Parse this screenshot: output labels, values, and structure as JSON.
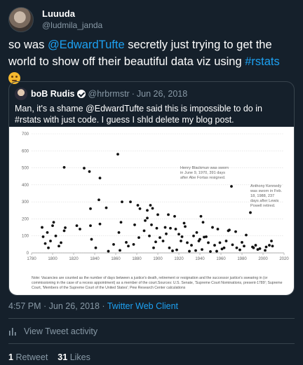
{
  "tweet": {
    "display_name": "Luuuda",
    "handle": "@ludmila_janda",
    "text_parts": [
      "so was ",
      "@EdwardTufte",
      " secretly just trying to get the world to show off their beautiful data viz using ",
      "#rstats",
      " "
    ],
    "timestamp": "4:57 PM · Jun 26, 2018",
    "via_separator": " · ",
    "client": "Twitter Web Client",
    "activity_label": "View Tweet activity",
    "retweet_count": "1",
    "retweet_label": "Retweet",
    "like_count": "31",
    "like_label": "Likes",
    "emoji_icon": "thinking-face-icon"
  },
  "quoted": {
    "display_name": "boB Rudis",
    "handle": "@hrbrmstr",
    "separator": "·",
    "date": "Jun 26, 2018",
    "text": "Man, it's a shame @EdwardTufte said this is impossible to do in #rstats with just code. I guess I shld delete my blog post. rud.is/b/2016/03/16/s..."
  },
  "chart_data": {
    "type": "scatter",
    "xlim": [
      1780,
      2020
    ],
    "ylim": [
      0,
      700
    ],
    "x_ticks": [
      1780,
      1800,
      1820,
      1840,
      1860,
      1880,
      1900,
      1920,
      1940,
      1960,
      1980,
      2000,
      2020
    ],
    "y_ticks": [
      0,
      100,
      200,
      300,
      400,
      500,
      600,
      700
    ],
    "grid": true,
    "points": [
      [
        1790,
        150
      ],
      [
        1791,
        95
      ],
      [
        1793,
        55
      ],
      [
        1795,
        120
      ],
      [
        1796,
        30
      ],
      [
        1798,
        70
      ],
      [
        1800,
        160
      ],
      [
        1801,
        180
      ],
      [
        1803,
        100
      ],
      [
        1806,
        40
      ],
      [
        1808,
        60
      ],
      [
        1811,
        130
      ],
      [
        1812,
        148
      ],
      [
        1811,
        503
      ],
      [
        1823,
        160
      ],
      [
        1826,
        140
      ],
      [
        1830,
        498
      ],
      [
        1835,
        478
      ],
      [
        1836,
        260
      ],
      [
        1836,
        160
      ],
      [
        1837,
        80
      ],
      [
        1841,
        30
      ],
      [
        1844,
        312
      ],
      [
        1845,
        440
      ],
      [
        1845,
        170
      ],
      [
        1851,
        265
      ],
      [
        1853,
        10
      ],
      [
        1858,
        50
      ],
      [
        1862,
        580
      ],
      [
        1863,
        120
      ],
      [
        1864,
        15
      ],
      [
        1865,
        180
      ],
      [
        1866,
        300
      ],
      [
        1870,
        62
      ],
      [
        1872,
        40
      ],
      [
        1874,
        300
      ],
      [
        1877,
        50
      ],
      [
        1878,
        165
      ],
      [
        1881,
        280
      ],
      [
        1882,
        90
      ],
      [
        1883,
        260
      ],
      [
        1887,
        130
      ],
      [
        1888,
        190
      ],
      [
        1890,
        250
      ],
      [
        1890,
        205
      ],
      [
        1892,
        100
      ],
      [
        1893,
        280
      ],
      [
        1894,
        165
      ],
      [
        1895,
        262
      ],
      [
        1896,
        30
      ],
      [
        1898,
        65
      ],
      [
        1899,
        145
      ],
      [
        1900,
        225
      ],
      [
        1902,
        90
      ],
      [
        1905,
        70
      ],
      [
        1907,
        150
      ],
      [
        1908,
        112
      ],
      [
        1910,
        225
      ],
      [
        1911,
        30
      ],
      [
        1912,
        145
      ],
      [
        1914,
        12
      ],
      [
        1916,
        215
      ],
      [
        1917,
        140
      ],
      [
        1918,
        18
      ],
      [
        1920,
        110
      ],
      [
        1922,
        70
      ],
      [
        1923,
        95
      ],
      [
        1925,
        175
      ],
      [
        1926,
        155
      ],
      [
        1928,
        60
      ],
      [
        1930,
        10
      ],
      [
        1932,
        45
      ],
      [
        1934,
        100
      ],
      [
        1936,
        14
      ],
      [
        1937,
        120
      ],
      [
        1939,
        70
      ],
      [
        1940,
        80
      ],
      [
        1941,
        215
      ],
      [
        1942,
        20
      ],
      [
        1943,
        180
      ],
      [
        1944,
        93
      ],
      [
        1946,
        95
      ],
      [
        1948,
        60
      ],
      [
        1950,
        8
      ],
      [
        1952,
        150
      ],
      [
        1954,
        45
      ],
      [
        1956,
        10
      ],
      [
        1957,
        140
      ],
      [
        1959,
        60
      ],
      [
        1961,
        23
      ],
      [
        1963,
        30
      ],
      [
        1965,
        70
      ],
      [
        1967,
        130
      ],
      [
        1968,
        135
      ],
      [
        1970,
        391
      ],
      [
        1971,
        48
      ],
      [
        1974,
        125
      ],
      [
        1975,
        30
      ],
      [
        1978,
        18
      ],
      [
        1980,
        62
      ],
      [
        1982,
        40
      ],
      [
        1984,
        105
      ],
      [
        1988,
        237
      ],
      [
        1990,
        35
      ],
      [
        1991,
        30
      ],
      [
        1993,
        45
      ],
      [
        1995,
        20
      ],
      [
        1997,
        25
      ],
      [
        2002,
        15
      ],
      [
        2003,
        35
      ],
      [
        2006,
        45
      ],
      [
        2008,
        70
      ],
      [
        2009,
        40
      ]
    ],
    "annotations": [
      {
        "lines": [
          "Henry Blackmun was sworn",
          "in June 9, 1970, 391 days",
          "after Abe Fortas resigned."
        ],
        "x": 1970,
        "y": 391
      },
      {
        "lines": [
          "Anthony Kennedy",
          "was sworn in Feb.",
          "18, 1988, 237",
          "days after Lewis",
          "Powell retired."
        ],
        "x": 1988,
        "y": 237
      }
    ],
    "note": "Note: Vacancies are counted as the number of days between a justice's death, retirement or resignation and the successor justice's swearing in (or commissioning in the case of a recess appointment) as a member of the court.Sources: U.S. Senate, 'Supreme Court Nominations, present-1789'; Supreme Court, 'Members of the Supreme Court of the United States'; Pew Research Center calculations",
    "colors": {
      "points": "#111111",
      "grid": "#d9d9d9",
      "text": "#666666"
    }
  },
  "theme": {
    "background": "#15202b",
    "accent": "#1da1f2",
    "border": "#38444d",
    "muted": "#8899a6"
  },
  "icons": {
    "verified": "verified-badge-icon",
    "activity": "bar-chart-icon"
  }
}
